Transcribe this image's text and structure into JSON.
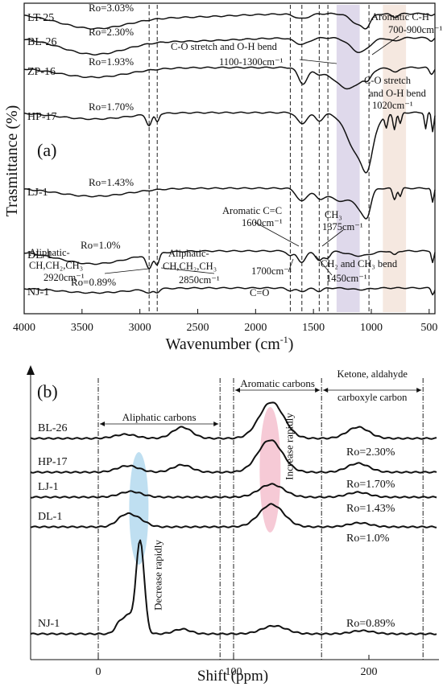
{
  "chart_data": [
    {
      "type": "line",
      "panel_label": "(a)",
      "xlabel": "Wavenumber (cm",
      "xlabel_sup": "-1",
      "xlabel_end": ")",
      "ylabel": "Trasmittance (%)",
      "xlim": [
        4000,
        450
      ],
      "xticks": [
        "4000",
        "3500",
        "3000",
        "2500",
        "2000",
        "1500",
        "1000",
        "500"
      ],
      "dashed_lines": [
        2920,
        2850,
        1700,
        1600,
        1450,
        1375,
        1020
      ],
      "bands": [
        {
          "from": 1300,
          "to": 1100,
          "color": "#d7cfe6"
        },
        {
          "from": 900,
          "to": 700,
          "color": "#f3e2d8"
        }
      ],
      "series": [
        {
          "name": "LT-25",
          "ro": "Ro=3.03%"
        },
        {
          "name": "BL-26",
          "ro": "Ro=2.30%"
        },
        {
          "name": "ZP-16",
          "ro": "Ro=1.93%"
        },
        {
          "name": "HP-17",
          "ro": "Ro=1.70%"
        },
        {
          "name": "LJ-1",
          "ro": "Ro=1.43%"
        },
        {
          "name": "DL-1",
          "ro": "Ro=1.0%"
        },
        {
          "name": "NJ-1",
          "ro": "Ro=0.89%"
        }
      ],
      "annotations": [
        {
          "id": "arom_ch",
          "lines": [
            "Aromatic C-H",
            "700-900cm⁻¹"
          ]
        },
        {
          "id": "co_oh",
          "lines": [
            "C-O stretch and O-H bend",
            "1100-1300cm⁻¹"
          ]
        },
        {
          "id": "co_oh_1020",
          "lines": [
            "C-O stretch",
            "and O-H bend",
            "1020cm⁻¹"
          ]
        },
        {
          "id": "arom_cc",
          "lines": [
            "Aromatic C=C",
            "1600cm⁻¹"
          ]
        },
        {
          "id": "ch3",
          "lines": [
            "CH₃",
            "1375cm⁻¹"
          ]
        },
        {
          "id": "aliph_2920",
          "lines": [
            "Aliphatic-",
            "CH,CH₂,CH₃",
            "2920cm⁻¹"
          ]
        },
        {
          "id": "aliph_2850",
          "lines": [
            "Aliphatic-",
            "CH,CH₂,CH₃",
            "2850cm⁻¹"
          ]
        },
        {
          "id": "co_1700",
          "lines": [
            "1700cm⁻¹"
          ]
        },
        {
          "id": "ch2_bend",
          "lines": [
            "CH₂ and CH₃ bend",
            "1450cm⁻¹"
          ]
        },
        {
          "id": "c_o",
          "lines": [
            "C=O"
          ]
        }
      ]
    },
    {
      "type": "line",
      "panel_label": "(b)",
      "xlabel": "Shift (ppm)",
      "xlim": [
        -50,
        250
      ],
      "xticks": [
        "0",
        "100",
        "200"
      ],
      "region_lines": [
        0,
        90,
        100,
        165,
        240
      ],
      "regions": [
        {
          "label": "Aliphatic carbons",
          "from": 0,
          "to": 90
        },
        {
          "label": "Aromatic carbons",
          "from": 100,
          "to": 165
        },
        {
          "label": "Ketone, aldahyde",
          "label2": "carboxyle carbon",
          "from": 165,
          "to": 240
        }
      ],
      "series": [
        {
          "name": "BL-26",
          "ro": "Ro=2.30%"
        },
        {
          "name": "HP-17",
          "ro": "Ro=1.70%"
        },
        {
          "name": "LJ-1",
          "ro": "Ro=1.43%"
        },
        {
          "name": "DL-1",
          "ro": "Ro=1.0%"
        },
        {
          "name": "NJ-1",
          "ro": "Ro=0.89%"
        }
      ],
      "annotations": [
        {
          "id": "increase",
          "text": "Increase rapidly",
          "color": "#f3b8c8"
        },
        {
          "id": "decrease",
          "text": "Decrease rapidly",
          "color": "#a9d4ec"
        }
      ]
    }
  ]
}
